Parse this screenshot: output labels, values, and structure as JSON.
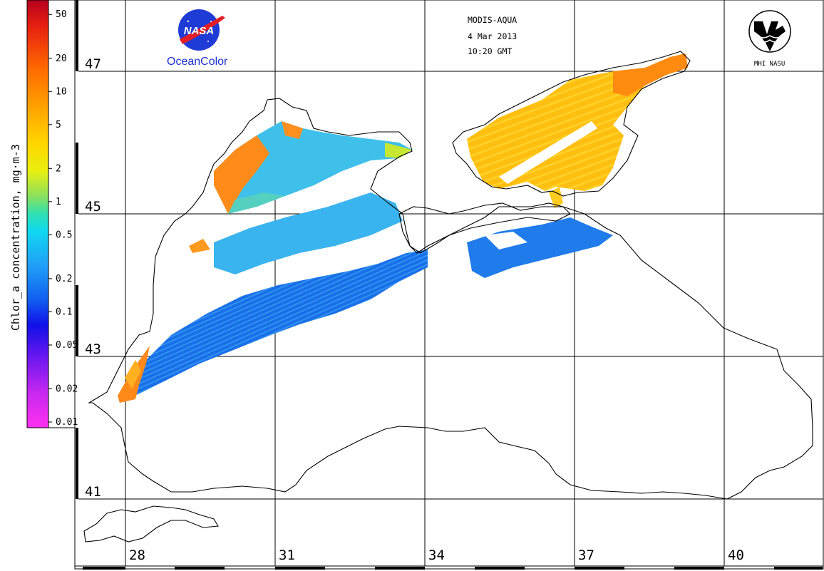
{
  "header": {
    "sensor": "MODIS-AQUA",
    "date": "4 Mar 2013",
    "time": "10:20 GMT"
  },
  "logos": {
    "nasa_text": "NASA",
    "oceancolor_text": "OceanColor",
    "mhi_text": "MHI NASU"
  },
  "colorbar": {
    "title": "Chlor_a concentration, mg·m-3",
    "ticks": [
      "50",
      "20",
      "10",
      "5",
      "2",
      "1",
      "0.5",
      "0.2",
      "0.1",
      "0.05",
      "0.02",
      "0.01"
    ],
    "scale": "log",
    "range": [
      0.01,
      60
    ]
  },
  "grid": {
    "latitudes": [
      "47",
      "45",
      "43",
      "41"
    ],
    "longitudes": [
      "28",
      "31",
      "34",
      "37",
      "40"
    ]
  },
  "colors": {
    "nasa_blue": "#1f3bd6",
    "nasa_red": "#e21f26"
  }
}
